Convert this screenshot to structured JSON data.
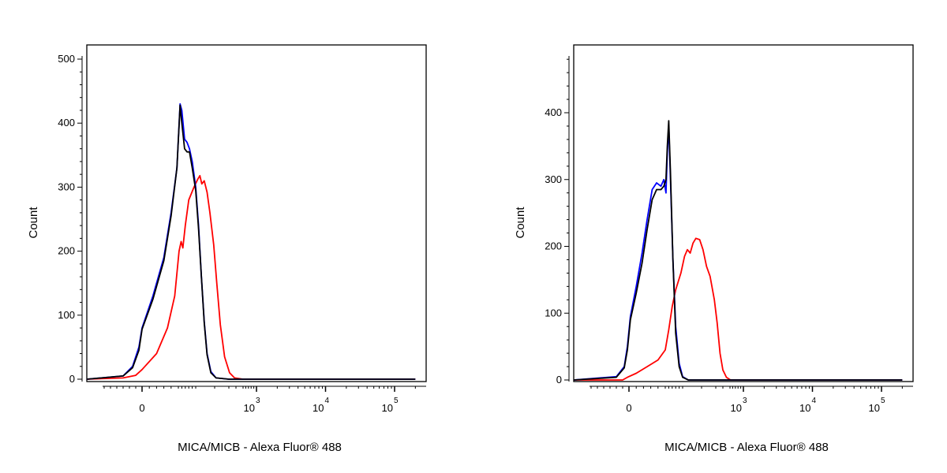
{
  "chart_data": [
    {
      "type": "line",
      "title": "",
      "xlabel": "MICA/MICB - Alexa Fluor® 488",
      "ylabel": "Count",
      "x_scale": "biexponential",
      "ylim": [
        0,
        520
      ],
      "y_ticks": [
        0,
        100,
        200,
        300,
        400,
        500
      ],
      "x_ticks": [
        {
          "value": 0,
          "base": "0",
          "exp": ""
        },
        {
          "value": 1000,
          "base": "10",
          "exp": "3"
        },
        {
          "value": 10000,
          "base": "10",
          "exp": "4"
        },
        {
          "value": 100000,
          "base": "10",
          "exp": "5"
        }
      ],
      "grid": false,
      "series": [
        {
          "color": "#0000ff",
          "points": [
            [
              -180,
              0
            ],
            [
              -60,
              5
            ],
            [
              -30,
              20
            ],
            [
              -10,
              50
            ],
            [
              0,
              80
            ],
            [
              15,
              130
            ],
            [
              30,
              190
            ],
            [
              40,
              260
            ],
            [
              48,
              330
            ],
            [
              55,
              430
            ],
            [
              60,
              420
            ],
            [
              68,
              375
            ],
            [
              75,
              370
            ],
            [
              82,
              360
            ],
            [
              90,
              340
            ],
            [
              100,
              300
            ],
            [
              115,
              240
            ],
            [
              130,
              160
            ],
            [
              145,
              90
            ],
            [
              160,
              40
            ],
            [
              180,
              12
            ],
            [
              210,
              2
            ],
            [
              300,
              0
            ],
            [
              200000,
              0
            ]
          ]
        },
        {
          "color": "#000000",
          "points": [
            [
              -180,
              0
            ],
            [
              -60,
              5
            ],
            [
              -30,
              18
            ],
            [
              -10,
              45
            ],
            [
              0,
              78
            ],
            [
              15,
              125
            ],
            [
              30,
              185
            ],
            [
              40,
              255
            ],
            [
              48,
              330
            ],
            [
              55,
              428
            ],
            [
              60,
              400
            ],
            [
              68,
              360
            ],
            [
              75,
              355
            ],
            [
              82,
              355
            ],
            [
              90,
              330
            ],
            [
              100,
              295
            ],
            [
              115,
              235
            ],
            [
              130,
              160
            ],
            [
              145,
              88
            ],
            [
              160,
              38
            ],
            [
              180,
              10
            ],
            [
              210,
              2
            ],
            [
              300,
              0
            ],
            [
              200000,
              0
            ]
          ]
        },
        {
          "color": "#ff0000",
          "points": [
            [
              -180,
              0
            ],
            [
              -60,
              2
            ],
            [
              -20,
              6
            ],
            [
              0,
              15
            ],
            [
              20,
              40
            ],
            [
              35,
              80
            ],
            [
              45,
              130
            ],
            [
              52,
              200
            ],
            [
              58,
              215
            ],
            [
              63,
              205
            ],
            [
              70,
              240
            ],
            [
              80,
              280
            ],
            [
              95,
              300
            ],
            [
              110,
              312
            ],
            [
              122,
              318
            ],
            [
              132,
              305
            ],
            [
              145,
              310
            ],
            [
              160,
              292
            ],
            [
              175,
              260
            ],
            [
              195,
              210
            ],
            [
              215,
              150
            ],
            [
              240,
              85
            ],
            [
              270,
              35
            ],
            [
              310,
              10
            ],
            [
              380,
              2
            ],
            [
              500,
              0
            ],
            [
              200000,
              0
            ]
          ]
        }
      ]
    },
    {
      "type": "line",
      "title": "",
      "xlabel": "MICA/MICB - Alexa Fluor® 488",
      "ylabel": "Count",
      "x_scale": "biexponential",
      "ylim": [
        0,
        490
      ],
      "y_ticks": [
        0,
        100,
        200,
        300,
        400
      ],
      "x_ticks": [
        {
          "value": 0,
          "base": "0",
          "exp": ""
        },
        {
          "value": 1000,
          "base": "10",
          "exp": "3"
        },
        {
          "value": 10000,
          "base": "10",
          "exp": "4"
        },
        {
          "value": 100000,
          "base": "10",
          "exp": "5"
        }
      ],
      "grid": false,
      "series": [
        {
          "color": "#0000ff",
          "points": [
            [
              -180,
              0
            ],
            [
              -40,
              5
            ],
            [
              -15,
              20
            ],
            [
              -5,
              50
            ],
            [
              2,
              95
            ],
            [
              10,
              140
            ],
            [
              18,
              190
            ],
            [
              25,
              240
            ],
            [
              32,
              285
            ],
            [
              38,
              295
            ],
            [
              44,
              290
            ],
            [
              48,
              300
            ],
            [
              52,
              280
            ],
            [
              56,
              340
            ],
            [
              60,
              380
            ],
            [
              65,
              300
            ],
            [
              72,
              180
            ],
            [
              80,
              80
            ],
            [
              90,
              25
            ],
            [
              100,
              5
            ],
            [
              130,
              0
            ],
            [
              200000,
              0
            ]
          ]
        },
        {
          "color": "#000000",
          "points": [
            [
              -180,
              0
            ],
            [
              -40,
              4
            ],
            [
              -15,
              18
            ],
            [
              -5,
              45
            ],
            [
              2,
              90
            ],
            [
              10,
              130
            ],
            [
              18,
              175
            ],
            [
              25,
              225
            ],
            [
              32,
              270
            ],
            [
              38,
              285
            ],
            [
              44,
              285
            ],
            [
              48,
              290
            ],
            [
              52,
              300
            ],
            [
              56,
              350
            ],
            [
              60,
              388
            ],
            [
              65,
              310
            ],
            [
              72,
              180
            ],
            [
              80,
              70
            ],
            [
              90,
              20
            ],
            [
              100,
              4
            ],
            [
              130,
              0
            ],
            [
              200000,
              0
            ]
          ]
        },
        {
          "color": "#ff0000",
          "points": [
            [
              -180,
              0
            ],
            [
              -20,
              0
            ],
            [
              -5,
              4
            ],
            [
              10,
              10
            ],
            [
              25,
              20
            ],
            [
              40,
              30
            ],
            [
              50,
              45
            ],
            [
              60,
              75
            ],
            [
              70,
              110
            ],
            [
              80,
              135
            ],
            [
              95,
              160
            ],
            [
              110,
              185
            ],
            [
              125,
              195
            ],
            [
              140,
              190
            ],
            [
              155,
              205
            ],
            [
              170,
              212
            ],
            [
              190,
              210
            ],
            [
              210,
              195
            ],
            [
              235,
              170
            ],
            [
              260,
              155
            ],
            [
              290,
              120
            ],
            [
              320,
              85
            ],
            [
              360,
              40
            ],
            [
              400,
              15
            ],
            [
              450,
              4
            ],
            [
              520,
              0
            ],
            [
              200000,
              0
            ]
          ]
        }
      ]
    }
  ]
}
